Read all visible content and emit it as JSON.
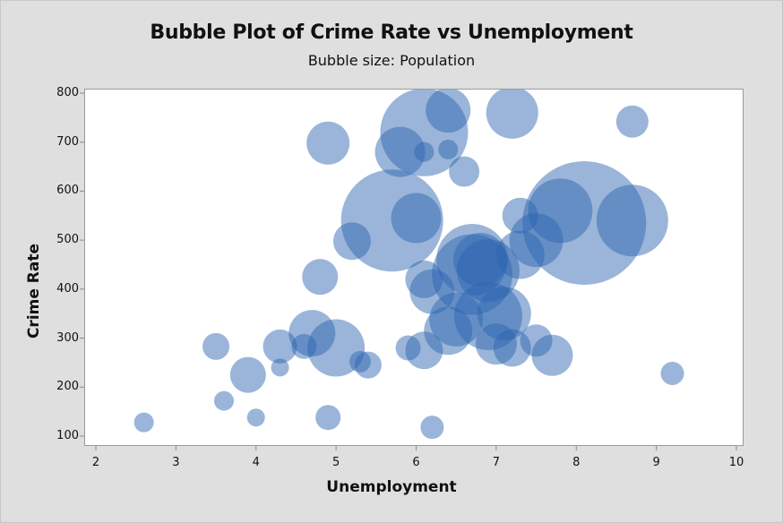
{
  "chart_data": {
    "type": "scatter",
    "subtype": "bubble",
    "title": "Bubble Plot of Crime Rate vs Unemployment",
    "subtitle": "Bubble size: Population",
    "xlabel": "Unemployment",
    "ylabel": "Crime Rate",
    "xlim": [
      2,
      10
    ],
    "ylim": [
      100,
      800
    ],
    "x_ticks": [
      2,
      3,
      4,
      5,
      6,
      7,
      8,
      9,
      10
    ],
    "y_ticks": [
      100,
      200,
      300,
      400,
      500,
      600,
      700,
      800
    ],
    "grid": false,
    "legend": null,
    "bubble_color": "#2c64b0",
    "bubble_opacity": 0.48,
    "points": [
      {
        "x": 2.6,
        "y": 128,
        "r": 11
      },
      {
        "x": 3.5,
        "y": 283,
        "r": 15
      },
      {
        "x": 3.6,
        "y": 172,
        "r": 11
      },
      {
        "x": 3.9,
        "y": 225,
        "r": 20
      },
      {
        "x": 4.0,
        "y": 138,
        "r": 10
      },
      {
        "x": 4.3,
        "y": 283,
        "r": 19
      },
      {
        "x": 4.3,
        "y": 240,
        "r": 10
      },
      {
        "x": 4.6,
        "y": 283,
        "r": 14
      },
      {
        "x": 4.7,
        "y": 310,
        "r": 26
      },
      {
        "x": 4.8,
        "y": 425,
        "r": 20
      },
      {
        "x": 4.9,
        "y": 698,
        "r": 24
      },
      {
        "x": 4.9,
        "y": 138,
        "r": 14
      },
      {
        "x": 5.0,
        "y": 280,
        "r": 32
      },
      {
        "x": 5.3,
        "y": 252,
        "r": 12
      },
      {
        "x": 5.4,
        "y": 245,
        "r": 15
      },
      {
        "x": 5.2,
        "y": 498,
        "r": 21
      },
      {
        "x": 5.7,
        "y": 540,
        "r": 57
      },
      {
        "x": 5.8,
        "y": 680,
        "r": 28
      },
      {
        "x": 5.9,
        "y": 280,
        "r": 14
      },
      {
        "x": 6.0,
        "y": 545,
        "r": 28
      },
      {
        "x": 6.1,
        "y": 720,
        "r": 49
      },
      {
        "x": 6.1,
        "y": 680,
        "r": 11
      },
      {
        "x": 6.1,
        "y": 275,
        "r": 21
      },
      {
        "x": 6.1,
        "y": 420,
        "r": 21
      },
      {
        "x": 6.2,
        "y": 118,
        "r": 13
      },
      {
        "x": 6.2,
        "y": 395,
        "r": 25
      },
      {
        "x": 6.4,
        "y": 685,
        "r": 11
      },
      {
        "x": 6.4,
        "y": 765,
        "r": 25
      },
      {
        "x": 6.4,
        "y": 315,
        "r": 27
      },
      {
        "x": 6.5,
        "y": 338,
        "r": 30
      },
      {
        "x": 6.6,
        "y": 640,
        "r": 17
      },
      {
        "x": 6.7,
        "y": 460,
        "r": 40
      },
      {
        "x": 6.7,
        "y": 430,
        "r": 45
      },
      {
        "x": 6.8,
        "y": 460,
        "r": 30
      },
      {
        "x": 6.9,
        "y": 438,
        "r": 35
      },
      {
        "x": 6.9,
        "y": 345,
        "r": 38
      },
      {
        "x": 7.0,
        "y": 288,
        "r": 23
      },
      {
        "x": 7.1,
        "y": 350,
        "r": 30
      },
      {
        "x": 7.2,
        "y": 280,
        "r": 21
      },
      {
        "x": 7.2,
        "y": 760,
        "r": 29
      },
      {
        "x": 7.3,
        "y": 550,
        "r": 20
      },
      {
        "x": 7.3,
        "y": 470,
        "r": 27
      },
      {
        "x": 7.5,
        "y": 295,
        "r": 18
      },
      {
        "x": 7.5,
        "y": 500,
        "r": 30
      },
      {
        "x": 7.7,
        "y": 265,
        "r": 23
      },
      {
        "x": 7.8,
        "y": 560,
        "r": 36
      },
      {
        "x": 8.1,
        "y": 535,
        "r": 69
      },
      {
        "x": 8.7,
        "y": 742,
        "r": 18
      },
      {
        "x": 8.7,
        "y": 540,
        "r": 40
      },
      {
        "x": 9.2,
        "y": 228,
        "r": 13
      }
    ]
  }
}
